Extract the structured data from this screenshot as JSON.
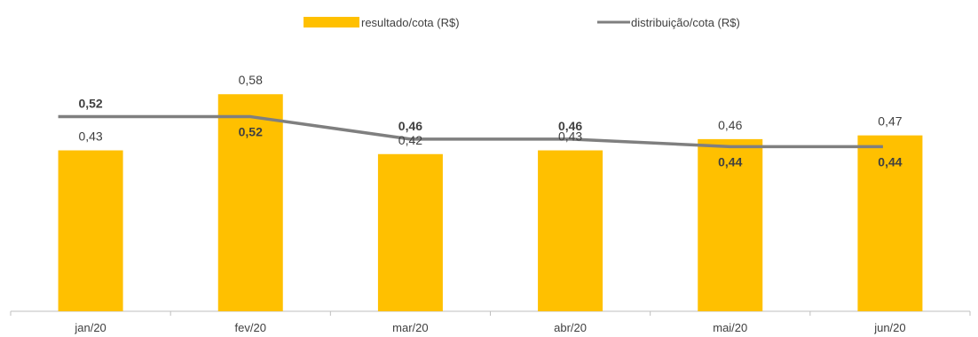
{
  "colors": {
    "bar": "#ffc000",
    "line": "#7f7f7f",
    "axis": "#bfbfbf",
    "text": "#404040"
  },
  "legend": {
    "bar_label": "resultado/cota (R$)",
    "line_label": "distribuição/cota (R$)"
  },
  "chart_data": {
    "type": "bar",
    "categories": [
      "jan/20",
      "fev/20",
      "mar/20",
      "abr/20",
      "mai/20",
      "jun/20"
    ],
    "series": [
      {
        "name": "resultado/cota (R$)",
        "type": "bar",
        "values": [
          0.43,
          0.58,
          0.42,
          0.43,
          0.46,
          0.47
        ],
        "labels": [
          "0,43",
          "0,58",
          "0,42",
          "0,43",
          "0,46",
          "0,47"
        ]
      },
      {
        "name": "distribuição/cota (R$)",
        "type": "line",
        "values": [
          0.52,
          0.52,
          0.46,
          0.46,
          0.44,
          0.44
        ],
        "labels": [
          "0,52",
          "0,52",
          "0,46",
          "0,46",
          "0,44",
          "0,44"
        ]
      }
    ],
    "ylim": [
      0,
      0.62
    ],
    "grid": false,
    "legend_position": "top-center"
  }
}
